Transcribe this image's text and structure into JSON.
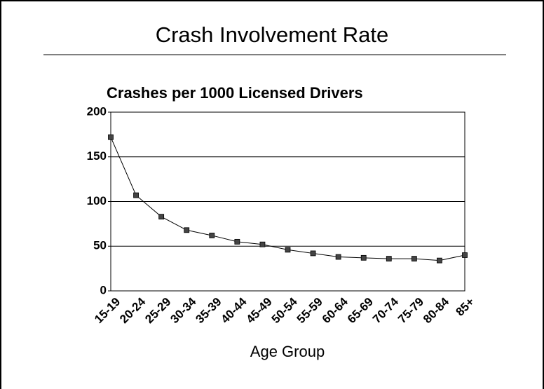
{
  "chart_data": {
    "type": "line",
    "title": "Crash Involvement Rate",
    "subtitle": "Crashes per 1000 Licensed Drivers",
    "x_label": "Age Group",
    "categories": [
      "15-19",
      "20-24",
      "25-29",
      "30-34",
      "35-39",
      "40-44",
      "45-49",
      "50-54",
      "55-59",
      "60-64",
      "65-69",
      "70-74",
      "75-79",
      "80-84",
      "85+"
    ],
    "series": [
      {
        "color": "#000000",
        "marker_color": "#444444",
        "values": [
          172,
          107,
          83,
          68,
          62,
          55,
          52,
          46,
          42,
          38,
          37,
          36,
          36,
          34,
          40
        ]
      }
    ],
    "ylim": [
      0,
      200
    ],
    "yticks": [
      0,
      50,
      100,
      150,
      200
    ],
    "grid": true
  }
}
